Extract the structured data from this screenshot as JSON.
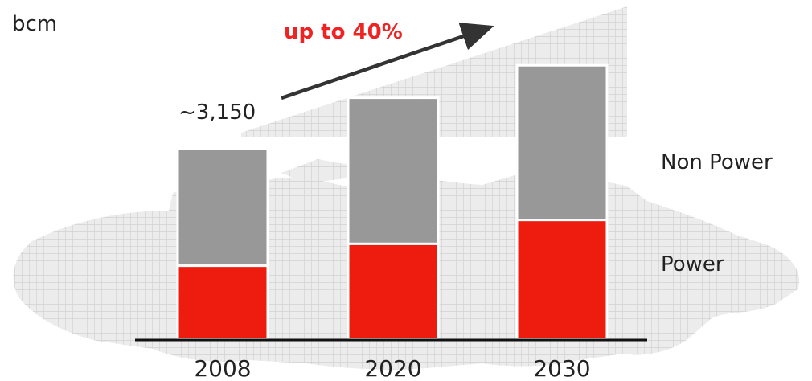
{
  "chart_data": {
    "type": "bar",
    "stacked": true,
    "unit_label": "bcm",
    "categories": [
      "2008",
      "2020",
      "2030"
    ],
    "series": [
      {
        "name": "Power",
        "values": [
          770,
          1000,
          1250
        ],
        "color": "#ee1c0e"
      },
      {
        "name": "Non Power",
        "values": [
          1230,
          1530,
          1620
        ],
        "color": "#989898"
      }
    ],
    "ylim": [
      0,
      3150
    ],
    "annotations": {
      "baseline_value": "~3,150",
      "growth": "up to 40%",
      "growth_color": "#ee2424"
    },
    "legend_position": "right",
    "background": "grey world map with grid pattern"
  }
}
